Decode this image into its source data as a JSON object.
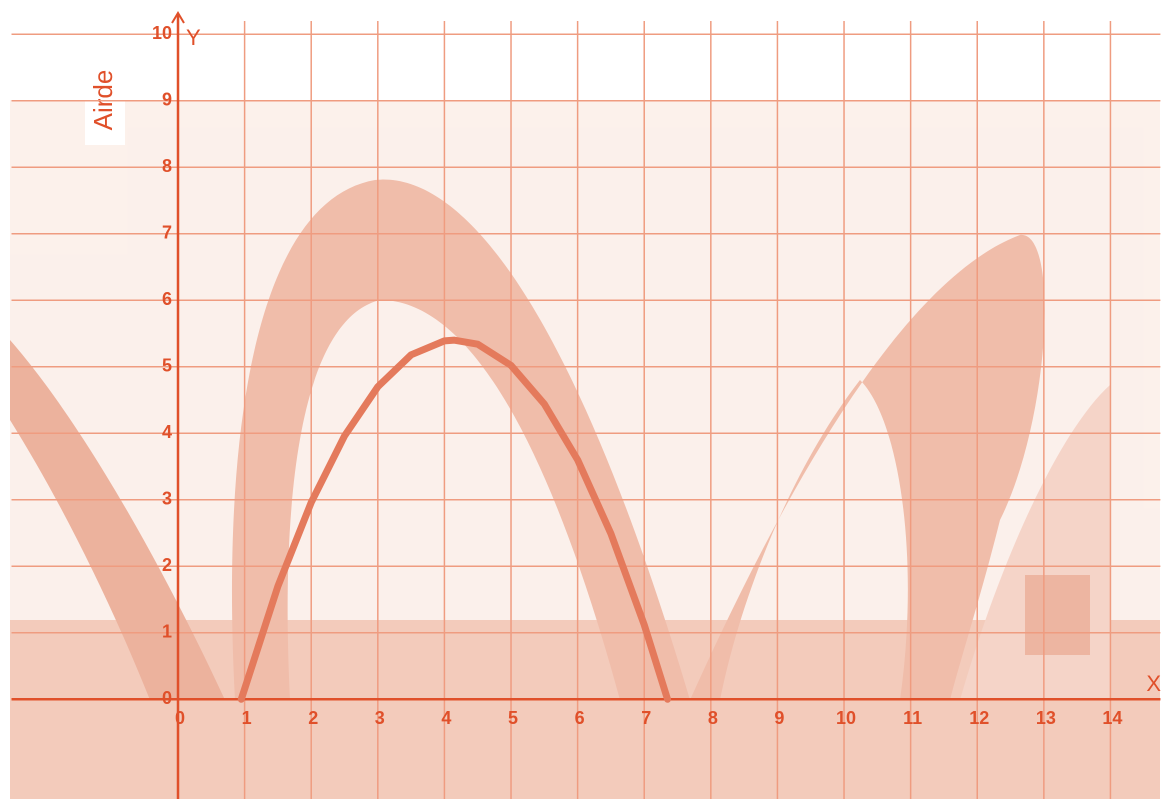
{
  "chart_data": {
    "type": "line",
    "title": "Airde",
    "x_label": "X",
    "y_label": "Y",
    "x": [
      0.95,
      1.5,
      2,
      2.5,
      3,
      3.5,
      4,
      4.15,
      4.5,
      5,
      5.5,
      6,
      6.5,
      7,
      7.35
    ],
    "series": [
      {
        "color": "#e47a5c",
        "values": [
          0,
          1.7,
          2.96,
          3.96,
          4.7,
          5.18,
          5.39,
          5.4,
          5.34,
          5.02,
          4.44,
          3.6,
          2.49,
          1.12,
          0
        ]
      }
    ],
    "xlim": [
      -2.5,
      14.75
    ],
    "ylim": [
      -1.5,
      10.2
    ],
    "xticks": [
      0,
      1,
      2,
      3,
      4,
      5,
      6,
      7,
      8,
      9,
      10,
      11,
      12,
      13,
      14
    ],
    "yticks": [
      0,
      1,
      2,
      3,
      4,
      5,
      6,
      7,
      8,
      9,
      10
    ],
    "grid": true,
    "axis_color": "#e0502a",
    "grid_color": "#ef9c80"
  }
}
